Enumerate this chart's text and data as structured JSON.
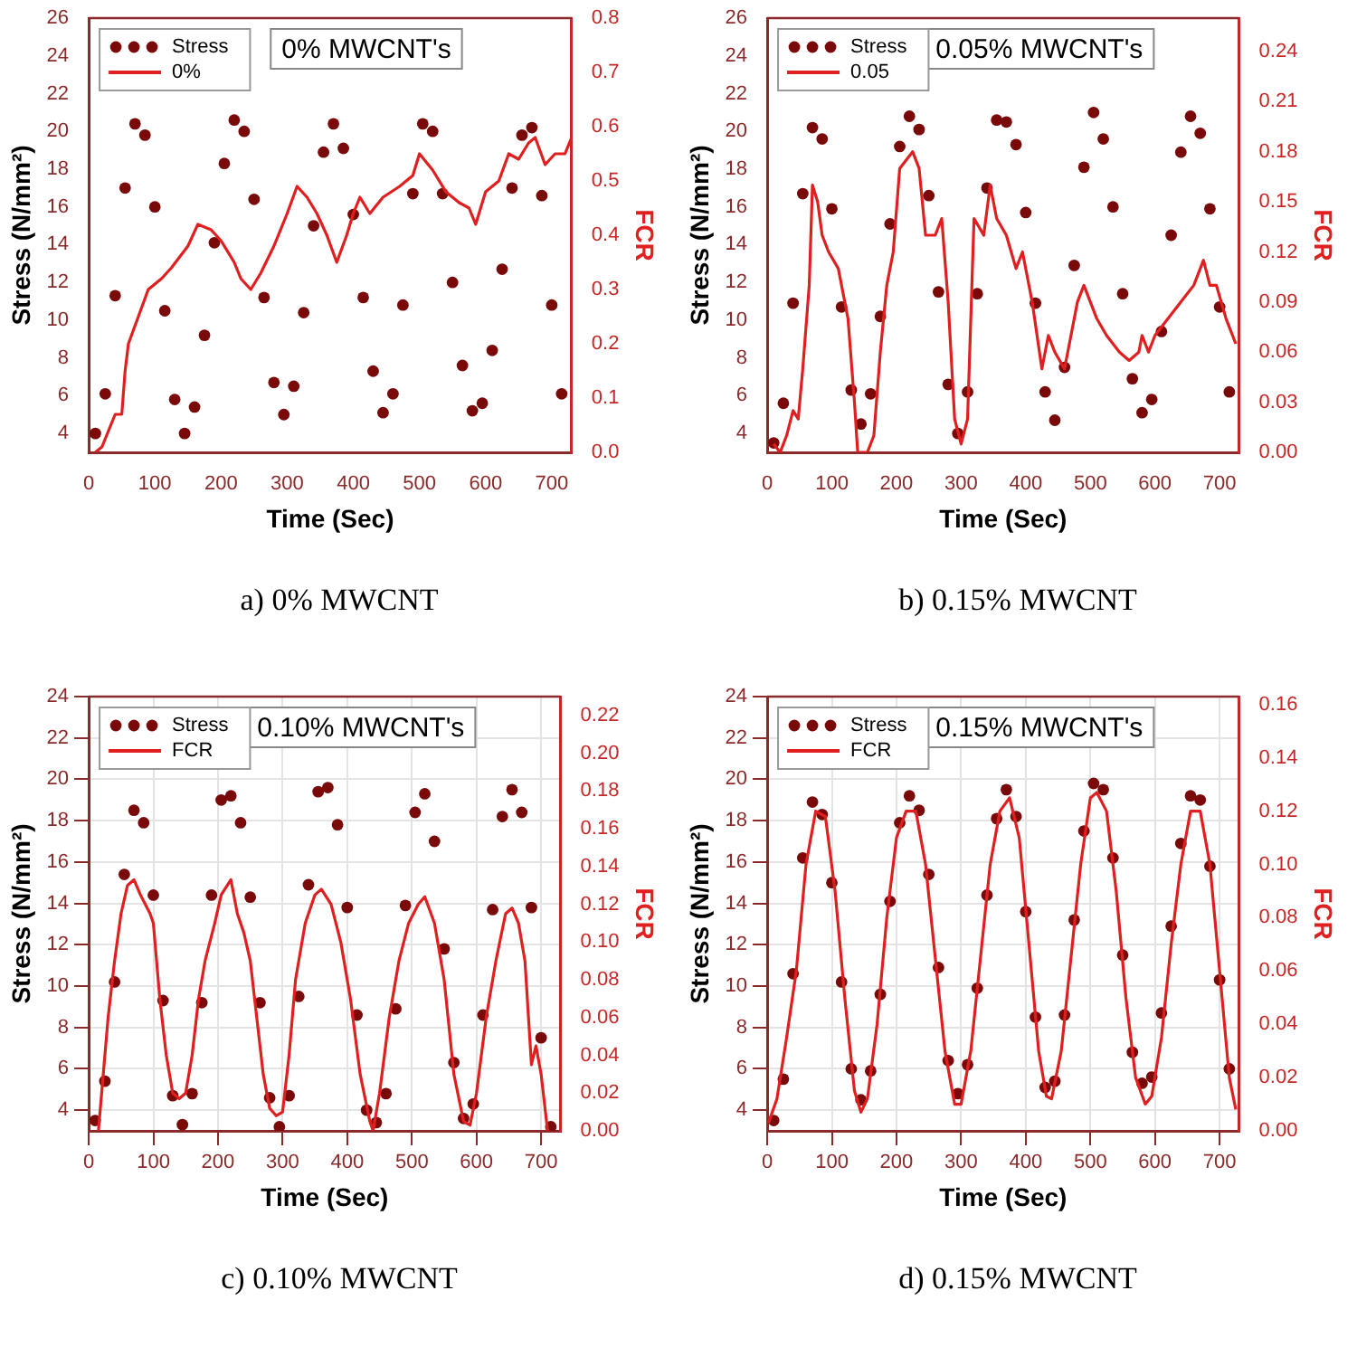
{
  "chart_data": [
    {
      "type": "scatter",
      "title": "0% MWCNT's",
      "xlabel": "Time (Sec)",
      "ylabel": "Stress (N/mm²)",
      "y2label": "FCR",
      "annotations": [
        "a) 0% MWCNT"
      ],
      "legend": "top left",
      "grid": false,
      "xlim": [
        0,
        730
      ],
      "xticks": [
        0,
        100,
        200,
        300,
        400,
        500,
        600,
        700
      ],
      "ylim": [
        3,
        26
      ],
      "yticks": [
        4,
        6,
        8,
        10,
        12,
        14,
        16,
        18,
        20,
        22,
        24,
        26
      ],
      "y2lim": [
        0,
        0.8
      ],
      "y2ticks": [
        {
          "value": 0,
          "label": "0.0"
        },
        0.1,
        0.2,
        0.3,
        0.4,
        0.5,
        0.6,
        0.7,
        0.8
      ],
      "x": [
        10,
        25,
        40,
        55,
        70,
        85,
        100,
        115,
        130,
        145,
        160,
        175,
        190,
        205,
        220,
        235,
        250,
        265,
        280,
        295,
        310,
        325,
        340,
        355,
        370,
        385,
        400,
        415,
        430,
        445,
        460,
        475,
        490,
        505,
        520,
        535,
        550,
        565,
        580,
        595,
        610,
        625,
        640,
        655,
        670,
        685,
        700,
        715
      ],
      "series": [
        {
          "name": "Stress",
          "marker": "circle",
          "color": "#7a0a0a",
          "values": [
            4,
            6.1,
            11.3,
            17,
            20.4,
            19.8,
            16,
            10.5,
            5.8,
            4,
            5.4,
            9.2,
            14.1,
            18.3,
            20.6,
            20,
            16.4,
            11.2,
            6.7,
            5,
            6.5,
            10.4,
            15,
            18.9,
            20.4,
            19.1,
            15.6,
            11.2,
            7.3,
            5.1,
            6.1,
            10.8,
            16.7,
            20.4,
            20,
            16.7,
            12,
            7.6,
            5.2,
            5.6,
            8.4,
            12.7,
            17,
            19.8,
            20.2,
            16.6,
            10.8,
            6.1
          ]
        },
        {
          "name": "0%",
          "type": "line",
          "axis": "y2",
          "color": "#e02020",
          "x": [
            10,
            20,
            30,
            40,
            50,
            55,
            60,
            75,
            90,
            110,
            125,
            150,
            165,
            185,
            200,
            220,
            230,
            245,
            260,
            280,
            300,
            315,
            330,
            345,
            360,
            375,
            390,
            400,
            410,
            425,
            445,
            470,
            490,
            500,
            520,
            540,
            560,
            575,
            585,
            600,
            620,
            635,
            650,
            665,
            675,
            690,
            705,
            720,
            730
          ],
          "values": [
            0,
            0.01,
            0.04,
            0.07,
            0.07,
            0.15,
            0.2,
            0.25,
            0.3,
            0.32,
            0.34,
            0.38,
            0.42,
            0.41,
            0.39,
            0.35,
            0.32,
            0.3,
            0.33,
            0.38,
            0.44,
            0.49,
            0.47,
            0.44,
            0.4,
            0.35,
            0.4,
            0.44,
            0.47,
            0.44,
            0.47,
            0.49,
            0.51,
            0.55,
            0.52,
            0.48,
            0.46,
            0.45,
            0.42,
            0.48,
            0.5,
            0.55,
            0.54,
            0.57,
            0.58,
            0.53,
            0.55,
            0.55,
            0.58
          ]
        }
      ]
    },
    {
      "type": "scatter",
      "title": "0.05% MWCNT's",
      "xlabel": "Time (Sec)",
      "ylabel": "Stress (N/mm²)",
      "y2label": "FCR",
      "annotations": [
        "b) 0.15% MWCNT"
      ],
      "legend": "top left",
      "grid": false,
      "xlim": [
        0,
        730
      ],
      "xticks": [
        0,
        100,
        200,
        300,
        400,
        500,
        600,
        700
      ],
      "ylim": [
        3,
        26
      ],
      "yticks": [
        4,
        6,
        8,
        10,
        12,
        14,
        16,
        18,
        20,
        22,
        24,
        26
      ],
      "y2lim": [
        0,
        0.26
      ],
      "y2ticks": [
        {
          "value": 0,
          "label": "0.00"
        },
        0.03,
        0.06,
        0.09,
        0.12,
        0.15,
        0.18,
        0.21,
        0.24
      ],
      "x": [
        10,
        25,
        40,
        55,
        70,
        85,
        100,
        115,
        130,
        145,
        160,
        175,
        190,
        205,
        220,
        235,
        250,
        265,
        280,
        295,
        310,
        325,
        340,
        355,
        370,
        385,
        400,
        415,
        430,
        445,
        460,
        475,
        490,
        505,
        520,
        535,
        550,
        565,
        580,
        595,
        610,
        625,
        640,
        655,
        670,
        685,
        700,
        715
      ],
      "series": [
        {
          "name": "Stress",
          "marker": "circle",
          "color": "#7a0a0a",
          "values": [
            3.5,
            5.6,
            10.9,
            16.7,
            20.2,
            19.6,
            15.9,
            10.7,
            6.3,
            4.5,
            6.1,
            10.2,
            15.1,
            19.2,
            20.8,
            20.1,
            16.6,
            11.5,
            6.6,
            4,
            6.2,
            11.4,
            17,
            20.6,
            20.5,
            19.3,
            15.7,
            10.9,
            6.2,
            4.7,
            7.5,
            12.9,
            18.1,
            21,
            19.6,
            16,
            11.4,
            6.9,
            5.1,
            5.8,
            9.4,
            14.5,
            18.9,
            20.8,
            19.9,
            15.9,
            10.7,
            6.2
          ]
        },
        {
          "name": "0.05",
          "type": "line",
          "axis": "y2",
          "color": "#e02020",
          "x": [
            10,
            20,
            30,
            40,
            48,
            55,
            65,
            70,
            78,
            85,
            95,
            110,
            125,
            135,
            140,
            155,
            165,
            175,
            185,
            195,
            205,
            215,
            225,
            235,
            245,
            260,
            270,
            280,
            290,
            300,
            310,
            320,
            335,
            345,
            355,
            370,
            385,
            395,
            410,
            425,
            435,
            445,
            460,
            480,
            490,
            500,
            510,
            525,
            545,
            560,
            575,
            580,
            590,
            600,
            620,
            640,
            660,
            675,
            685,
            695,
            710,
            725
          ],
          "values": [
            0.005,
            0,
            0.01,
            0.025,
            0.02,
            0.05,
            0.1,
            0.16,
            0.15,
            0.13,
            0.12,
            0.11,
            0.08,
            0.03,
            0,
            0,
            0.01,
            0.06,
            0.1,
            0.12,
            0.17,
            0.175,
            0.18,
            0.17,
            0.13,
            0.13,
            0.14,
            0.09,
            0.02,
            0.005,
            0.02,
            0.14,
            0.13,
            0.16,
            0.14,
            0.13,
            0.11,
            0.12,
            0.09,
            0.05,
            0.07,
            0.06,
            0.05,
            0.09,
            0.1,
            0.09,
            0.08,
            0.07,
            0.06,
            0.055,
            0.06,
            0.07,
            0.06,
            0.07,
            0.08,
            0.09,
            0.1,
            0.115,
            0.1,
            0.1,
            0.08,
            0.065
          ]
        }
      ]
    },
    {
      "type": "scatter",
      "title": "0.10% MWCNT's",
      "xlabel": "Time (Sec)",
      "ylabel": "Stress (N/mm²)",
      "y2label": "FCR",
      "annotations": [
        "c) 0.10% MWCNT"
      ],
      "legend": "top left",
      "grid": true,
      "xlim": [
        0,
        730
      ],
      "xticks": [
        0,
        100,
        200,
        300,
        400,
        500,
        600,
        700
      ],
      "ylim": [
        3,
        24
      ],
      "yticks": [
        4,
        6,
        8,
        10,
        12,
        14,
        16,
        18,
        20,
        22,
        24
      ],
      "y2lim": [
        0,
        0.23
      ],
      "y2ticks": [
        {
          "value": 0,
          "label": "0.00"
        },
        0.02,
        0.04,
        0.06,
        0.08,
        {
          "value": 0.1,
          "label": "0.10"
        },
        0.12,
        0.14,
        0.16,
        0.18,
        {
          "value": 0.2,
          "label": "0.20"
        },
        0.22
      ],
      "x": [
        10,
        25,
        40,
        55,
        70,
        85,
        100,
        115,
        130,
        145,
        160,
        175,
        190,
        205,
        220,
        235,
        250,
        265,
        280,
        295,
        310,
        325,
        340,
        355,
        370,
        385,
        400,
        415,
        430,
        445,
        460,
        475,
        490,
        505,
        520,
        535,
        550,
        565,
        580,
        595,
        610,
        625,
        640,
        655,
        670,
        685,
        700,
        715
      ],
      "series": [
        {
          "name": "Stress",
          "marker": "circle",
          "color": "#7a0a0a",
          "values": [
            3.5,
            5.4,
            10.2,
            15.4,
            18.5,
            17.9,
            14.4,
            9.3,
            4.7,
            3.3,
            4.8,
            9.2,
            14.4,
            19,
            19.2,
            17.9,
            14.3,
            9.2,
            4.6,
            3.2,
            4.7,
            9.5,
            14.9,
            19.4,
            19.6,
            17.8,
            13.8,
            8.6,
            4,
            3.4,
            4.8,
            8.9,
            13.9,
            18.4,
            19.3,
            17,
            11.8,
            6.3,
            3.6,
            4.3,
            8.6,
            13.7,
            18.2,
            19.5,
            18.4,
            13.8,
            7.5,
            3.2
          ]
        },
        {
          "name": "FCR",
          "type": "line",
          "axis": "y2",
          "color": "#e02020",
          "x": [
            15,
            20,
            30,
            40,
            50,
            60,
            70,
            80,
            95,
            100,
            110,
            120,
            130,
            140,
            150,
            160,
            170,
            180,
            195,
            205,
            220,
            230,
            240,
            250,
            260,
            270,
            280,
            290,
            300,
            310,
            320,
            335,
            350,
            360,
            375,
            390,
            405,
            420,
            435,
            440,
            450,
            465,
            480,
            495,
            510,
            520,
            535,
            550,
            565,
            580,
            590,
            600,
            615,
            630,
            645,
            655,
            665,
            675,
            685,
            692,
            700,
            710
          ],
          "values": [
            0,
            0.02,
            0.06,
            0.09,
            0.115,
            0.13,
            0.133,
            0.125,
            0.115,
            0.11,
            0.07,
            0.04,
            0.02,
            0.017,
            0.02,
            0.04,
            0.07,
            0.09,
            0.11,
            0.125,
            0.133,
            0.115,
            0.105,
            0.09,
            0.06,
            0.03,
            0.012,
            0.008,
            0.01,
            0.04,
            0.08,
            0.11,
            0.125,
            0.128,
            0.12,
            0.1,
            0.07,
            0.03,
            0.005,
            0,
            0.02,
            0.06,
            0.09,
            0.11,
            0.12,
            0.124,
            0.11,
            0.08,
            0.03,
            0.005,
            0.003,
            0.02,
            0.06,
            0.09,
            0.115,
            0.118,
            0.11,
            0.09,
            0.035,
            0.045,
            0.03,
            0
          ]
        }
      ]
    },
    {
      "type": "scatter",
      "title": "0.15% MWCNT's",
      "xlabel": "Time (Sec)",
      "ylabel": "Stress (N/mm²)",
      "y2label": "FCR",
      "annotations": [
        "d) 0.15% MWCNT"
      ],
      "legend": "top left",
      "grid": true,
      "xlim": [
        0,
        730
      ],
      "xticks": [
        0,
        100,
        200,
        300,
        400,
        500,
        600,
        700
      ],
      "ylim": [
        3,
        24
      ],
      "yticks": [
        4,
        6,
        8,
        10,
        12,
        14,
        16,
        18,
        20,
        22,
        24
      ],
      "y2lim": [
        0,
        0.163
      ],
      "y2ticks": [
        {
          "value": 0,
          "label": "0.00"
        },
        0.02,
        0.04,
        0.06,
        0.08,
        {
          "value": 0.1,
          "label": "0.10"
        },
        0.12,
        0.14,
        0.16
      ],
      "x": [
        10,
        25,
        40,
        55,
        70,
        85,
        100,
        115,
        130,
        145,
        160,
        175,
        190,
        205,
        220,
        235,
        250,
        265,
        280,
        295,
        310,
        325,
        340,
        355,
        370,
        385,
        400,
        415,
        430,
        445,
        460,
        475,
        490,
        505,
        520,
        535,
        550,
        565,
        580,
        595,
        610,
        625,
        640,
        655,
        670,
        685,
        700,
        715
      ],
      "series": [
        {
          "name": "Stress",
          "marker": "circle",
          "color": "#7a0a0a",
          "values": [
            3.5,
            5.5,
            10.6,
            16.2,
            18.9,
            18.3,
            15,
            10.2,
            6,
            4.5,
            5.9,
            9.6,
            14.1,
            17.9,
            19.2,
            18.5,
            15.4,
            10.9,
            6.4,
            4.8,
            6.2,
            9.9,
            14.4,
            18.1,
            19.5,
            18.2,
            13.6,
            8.5,
            5.1,
            5.4,
            8.6,
            13.2,
            17.5,
            19.8,
            19.5,
            16.2,
            11.5,
            6.8,
            5.3,
            5.6,
            8.7,
            12.9,
            16.9,
            19.2,
            19,
            15.8,
            10.3,
            6
          ]
        },
        {
          "name": "FCR",
          "type": "line",
          "axis": "y2",
          "color": "#e02020",
          "x": [
            2,
            15,
            30,
            45,
            60,
            75,
            90,
            105,
            120,
            135,
            145,
            155,
            170,
            185,
            200,
            215,
            230,
            245,
            260,
            275,
            290,
            300,
            315,
            330,
            345,
            360,
            375,
            390,
            405,
            420,
            432,
            440,
            455,
            470,
            485,
            500,
            510,
            525,
            540,
            555,
            570,
            585,
            595,
            610,
            625,
            640,
            655,
            670,
            685,
            700,
            715,
            725
          ],
          "values": [
            0.003,
            0.012,
            0.035,
            0.06,
            0.1,
            0.12,
            0.118,
            0.09,
            0.05,
            0.015,
            0.007,
            0.012,
            0.04,
            0.08,
            0.11,
            0.12,
            0.12,
            0.1,
            0.065,
            0.03,
            0.01,
            0.01,
            0.03,
            0.065,
            0.1,
            0.12,
            0.125,
            0.11,
            0.07,
            0.03,
            0.013,
            0.012,
            0.03,
            0.065,
            0.1,
            0.125,
            0.127,
            0.12,
            0.09,
            0.05,
            0.02,
            0.01,
            0.013,
            0.035,
            0.07,
            0.1,
            0.12,
            0.12,
            0.1,
            0.06,
            0.02,
            0.008
          ]
        }
      ]
    }
  ]
}
